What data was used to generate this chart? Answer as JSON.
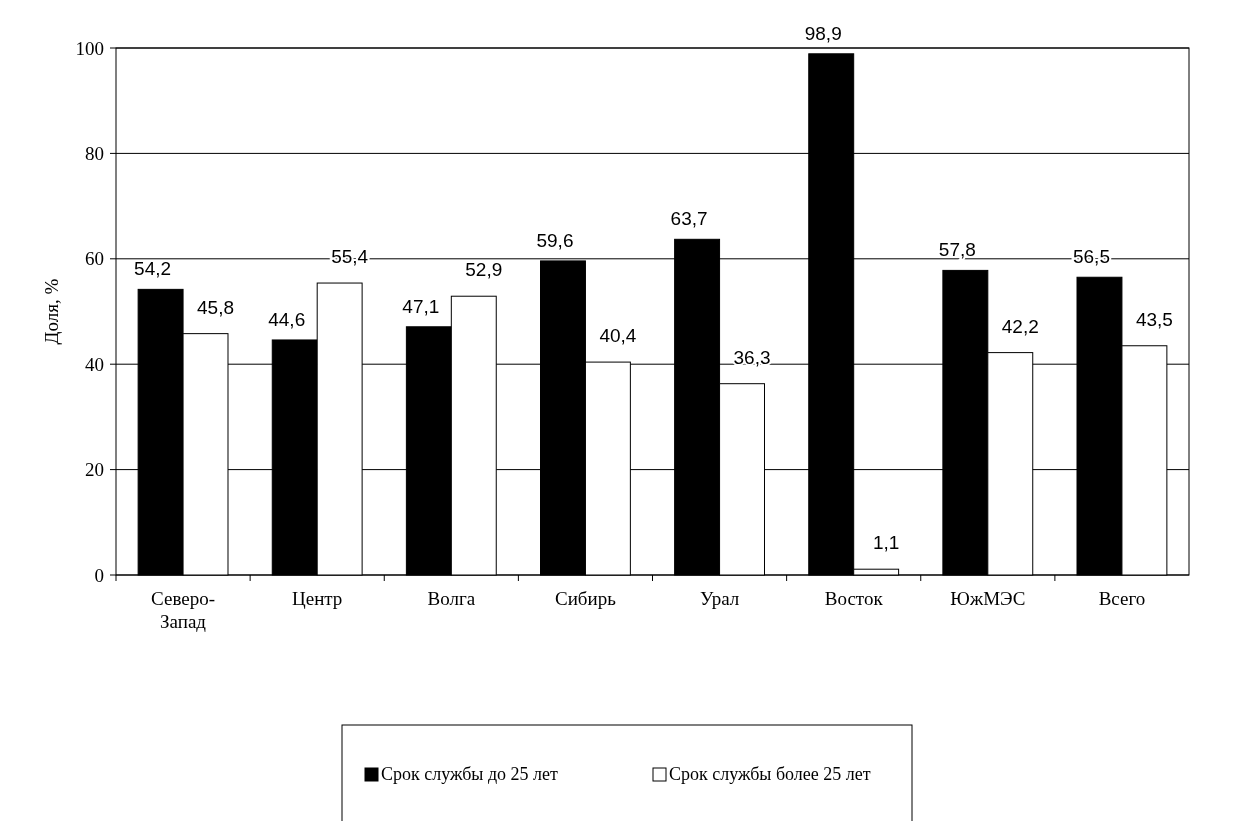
{
  "chart_data": {
    "type": "bar",
    "ylabel": "Доля, %",
    "categories": [
      "Северо-Запад",
      "Центр",
      "Волга",
      "Сибирь",
      "Урал",
      "Восток",
      "ЮжМЭС",
      "Всего"
    ],
    "series": [
      {
        "name": "Срок службы до 25 лет",
        "color": "#000000",
        "values": [
          54.2,
          44.6,
          47.1,
          59.6,
          63.7,
          98.9,
          57.8,
          56.5
        ],
        "value_labels": [
          "54,2",
          "44,6",
          "47,1",
          "59,6",
          "63,7",
          "98,9",
          "57,8",
          "56,5"
        ]
      },
      {
        "name": "Срок службы более 25 лет",
        "color": "#ffffff",
        "values": [
          45.8,
          55.4,
          52.9,
          40.4,
          36.3,
          1.1,
          42.2,
          43.5
        ],
        "value_labels": [
          "45,8",
          "55,4",
          "52,9",
          "40,4",
          "36,3",
          "1,1",
          "42,2",
          "43,5"
        ]
      }
    ],
    "ylim": [
      0,
      100
    ],
    "yticks": [
      0,
      20,
      40,
      60,
      80,
      100
    ],
    "grid": "y",
    "legend": "bottom"
  }
}
